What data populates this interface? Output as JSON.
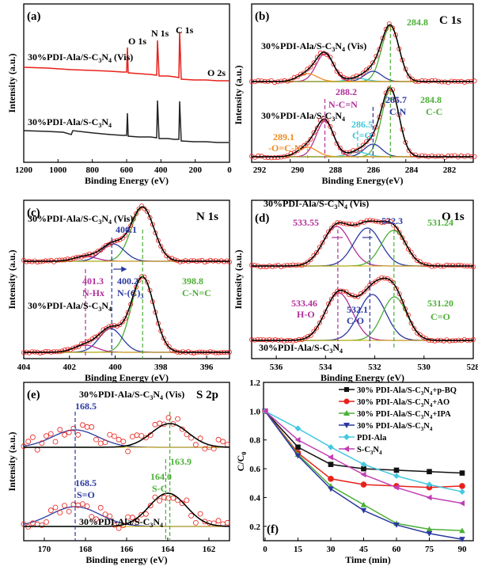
{
  "chart_data": [
    {
      "panel": "(a)",
      "type": "line",
      "xlabel": "Binding Energy (eV)",
      "ylabel": "Intensity (a.u.)",
      "xlim": [
        1200,
        0
      ],
      "xticks": [
        1200,
        1000,
        800,
        600,
        400,
        200,
        0
      ],
      "peak_labels": [
        "O 1s",
        "N 1s",
        "C 1s",
        "O 2s"
      ],
      "series": [
        {
          "name": "30%PDI-Ala/S-C3N4 (Vis)",
          "color": "#e8211b"
        },
        {
          "name": "30%PDI-Ala/S-C3N4",
          "color": "#222222"
        }
      ],
      "peak_positions": [
        531,
        399,
        285,
        25
      ]
    },
    {
      "panel": "(b)",
      "type": "line",
      "element_label": "C 1s",
      "xlabel": "Binding Energy(eV)",
      "ylabel": "Intensity (a.u.)",
      "xlim": [
        292,
        280.5
      ],
      "xticks": [
        292,
        290,
        288,
        286,
        284,
        282
      ],
      "top_curve": "30%PDI-Ala/S-C3N4 (Vis)",
      "bottom_curve": "30%PDI-Ala/S-C3N4",
      "peaks": [
        {
          "position": 284.8,
          "label_top": "284.8",
          "label_bottom": "284.8",
          "assignment": "C-C",
          "color": "#4caf37"
        },
        {
          "position": 285.7,
          "label_bottom": "285.7",
          "assignment": "C-N",
          "color": "#2b3aa1"
        },
        {
          "position": 286.5,
          "label_bottom": "286.5",
          "assignment": "C=O",
          "color": "#3ec5d9"
        },
        {
          "position": 288.2,
          "label_bottom": "288.2",
          "assignment": "N-C=N",
          "color": "#b1309a"
        },
        {
          "position": 289.1,
          "label_bottom": "289.1",
          "assignment": "-O=C-N-",
          "color": "#f08a22"
        }
      ]
    },
    {
      "panel": "(c)",
      "type": "line",
      "element_label": "N 1s",
      "xlabel": "Binding Energy (eV)",
      "ylabel": "Intensity (a.u.)",
      "xlim": [
        404,
        395
      ],
      "xticks": [
        404,
        402,
        400,
        398,
        396
      ],
      "top_curve": "30%PDI-Ala/S-C3N4 (Vis)",
      "bottom_curve": "30%PDI-Ala/S-C3N4",
      "peaks": [
        {
          "position": 398.8,
          "label_bottom": "398.8",
          "assignment": "C-N=C",
          "color": "#4caf37"
        },
        {
          "position": 400.1,
          "label_top": "400.1",
          "color": "#2b3aa1"
        },
        {
          "position": 400.2,
          "label_bottom": "400.2",
          "assignment": "N-(C)3",
          "color": "#2b3aa1"
        },
        {
          "position": 401.3,
          "label_bottom": "401.3",
          "assignment": "N-Hx",
          "color": "#b1309a"
        }
      ]
    },
    {
      "panel": "(d)",
      "type": "line",
      "element_label": "O 1s",
      "xlabel": "Binding Energy (eV)",
      "ylabel": "Intensity (a.u.)",
      "xlim": [
        537,
        528
      ],
      "xticks": [
        536,
        534,
        532,
        530,
        528
      ],
      "top_curve": "30%PDI-Ala/S-C3N4 (Vis)",
      "bottom_curve": "30%PDI-Ala/S-C3N4",
      "peaks_top": [
        {
          "position": 533.55,
          "label": "533.55",
          "color": "#b1309a"
        },
        {
          "position": 532.3,
          "label": "532.3",
          "color": "#2b3aa1"
        },
        {
          "position": 531.24,
          "label": "531.24",
          "color": "#4caf37"
        }
      ],
      "peaks_bottom": [
        {
          "position": 533.46,
          "label": "533.46",
          "assignment": "H-O",
          "color": "#b1309a"
        },
        {
          "position": 532.1,
          "label": "532.1",
          "assignment": "C-O",
          "color": "#2b3aa1"
        },
        {
          "position": 531.2,
          "label": "531.20",
          "assignment": "C=O",
          "color": "#4caf37"
        }
      ]
    },
    {
      "panel": "(e)",
      "type": "line",
      "element_label": "S 2p",
      "xlabel": "Binding energy (eV)",
      "ylabel": "Intensity (a.u.)",
      "xlim": [
        171,
        161
      ],
      "xticks": [
        170,
        168,
        166,
        164,
        162
      ],
      "top_curve": "30%PDI-Ala/S-C3N4 (Vis)",
      "bottom_curve": "30%PDI-Ala/S-C3N4",
      "peaks_top": [
        {
          "position": 168.5,
          "label": "168.5",
          "color": "#2b3aa1"
        },
        {
          "position": 163.9,
          "label": "163.9",
          "color": "#4caf37"
        }
      ],
      "peaks_bottom": [
        {
          "position": 168.5,
          "label": "168.5",
          "assignment": "S=O",
          "color": "#2b3aa1"
        },
        {
          "position": 164.0,
          "label": "164.0",
          "assignment": "S-C",
          "color": "#4caf37"
        }
      ]
    },
    {
      "panel": "(f)",
      "type": "line",
      "xlabel": "Time (min)",
      "ylabel": "C/C0",
      "xlim": [
        0,
        90
      ],
      "ylim": [
        0.1,
        1.2
      ],
      "xticks": [
        0,
        15,
        30,
        45,
        60,
        75,
        90
      ],
      "yticks": [
        0.2,
        0.4,
        0.6,
        0.8,
        1.0,
        1.2
      ],
      "x": [
        0,
        15,
        30,
        45,
        60,
        75,
        90
      ],
      "legend_position": "top-right",
      "series": [
        {
          "name": "30% PDI-Ala/S-C3N4+p-BQ",
          "color": "#111111",
          "marker": "square",
          "values": [
            1.0,
            0.75,
            0.63,
            0.6,
            0.59,
            0.58,
            0.57
          ]
        },
        {
          "name": "30% PDI-Ala/S-C3N4+AO",
          "color": "#e8211b",
          "marker": "circle",
          "values": [
            1.0,
            0.71,
            0.53,
            0.49,
            0.48,
            0.47,
            0.48
          ]
        },
        {
          "name": "30% PDI-Ala/S-C3N4+IPA",
          "color": "#4caf37",
          "marker": "triangle-up",
          "values": [
            1.0,
            0.7,
            0.48,
            0.35,
            0.22,
            0.18,
            0.17
          ]
        },
        {
          "name": "30% PDI-Ala/S-C3N4",
          "color": "#2b3aa1",
          "marker": "triangle-down",
          "values": [
            1.0,
            0.69,
            0.46,
            0.31,
            0.21,
            0.15,
            0.11
          ]
        },
        {
          "name": "PDI-Ala",
          "color": "#45c8e0",
          "marker": "diamond",
          "values": [
            1.0,
            0.88,
            0.75,
            0.63,
            0.55,
            0.49,
            0.44
          ]
        },
        {
          "name": "S-C3N4",
          "color": "#c03fb5",
          "marker": "triangle-left",
          "values": [
            1.0,
            0.8,
            0.68,
            0.56,
            0.47,
            0.4,
            0.36
          ]
        }
      ]
    }
  ],
  "text": {
    "a_tag": "(a)",
    "a_xlabel": "Binding Energy (eV)",
    "a_ylabel": "Intensity (a.u.)",
    "a_o1s": "O 1s",
    "a_n1s": "N 1s",
    "a_c1s": "C 1s",
    "a_o2s": "O 2s",
    "a_top_base": "30%PDI-Ala/S-C",
    "a_top_suf": " (Vis)",
    "a_bot_base": "30%PDI-Ala/S-C",
    "sub3": "3",
    "sub4": "4",
    "sub0": "0",
    "b_tag": "(b)",
    "b_el": "C 1s",
    "b_xlabel": "Binding Energy(eV)",
    "b_ylabel": "Intensity (a.u.)",
    "b_top_base": "30%PDI-Ala/S-C",
    "b_top_suf": " (Vis)",
    "b_bot_base": "30%PDI-Ala/S-C",
    "b_2848t": "284.8",
    "b_2848b": "284.8",
    "b_cc": "C-C",
    "b_2857": "285.7",
    "b_cn": "C-N",
    "b_2865": "286.5",
    "b_co": "C=O",
    "b_2882": "288.2",
    "b_ncn": "N-C=N",
    "b_2891": "289.1",
    "b_ocn": "-O=C-N-",
    "c_tag": "(c)",
    "c_el": "N 1s",
    "c_xlabel": "Binding Energy (eV)",
    "c_ylabel": "Intensity (a.u.)",
    "c_top_base": "30%PDI-Ala/S-C",
    "c_top_suf": " (Vis)",
    "c_bot_base": "30%PDI-Ala/S-C",
    "c_4001": "400.1",
    "c_4013": "401.3",
    "c_nhx": "N-Hx",
    "c_4002": "400.2",
    "c_nc3": "N-(C)",
    "c_3988": "398.8",
    "c_cnc": "C-N=C",
    "d_tag": "(d)",
    "d_el": "O 1s",
    "d_xlabel": "Binding Energy (eV)",
    "d_ylabel": "Intensity (a.u.)",
    "d_top_base": "30%PDI-Ala/S-C",
    "d_top_suf": " (Vis)",
    "d_bot_base": "30%PDI-Ala/S-C",
    "d_53355": "533.55",
    "d_5323": "532.3",
    "d_53124": "531.24",
    "d_53346": "533.46",
    "d_ho": "H-O",
    "d_5321": "532.1",
    "d_co": "C-O",
    "d_53120": "531.20",
    "d_ceqo": "C=O",
    "e_tag": "(e)",
    "e_el": "S 2p",
    "e_xlabel": "Binding energy (eV)",
    "e_ylabel": "Intensity (a.u.)",
    "e_top_base": "30%PDI-Ala/S-C",
    "e_top_suf": " (Vis)",
    "e_bot_base": "30%PDI-Ala/S-C",
    "e_1685t": "168.5",
    "e_1639": "163.9",
    "e_1685b": "168.5",
    "e_so": "S=O",
    "e_1640": "164.0",
    "e_sc": "S-C",
    "f_tag": "(f)",
    "f_xlabel": "Time (min)",
    "f_ylabel_c": "C/C",
    "leg1_base": "30% PDI-Ala/S-C",
    "leg1_suf": "+p-BQ",
    "leg2_base": "30% PDI-Ala/S-C",
    "leg2_suf": "+AO",
    "leg3_base": "30% PDI-Ala/S-C",
    "leg3_suf": "+IPA",
    "leg4_base": "30% PDI-Ala/S-C",
    "leg5": "PDI-Ala",
    "leg6_base": "S-C"
  }
}
